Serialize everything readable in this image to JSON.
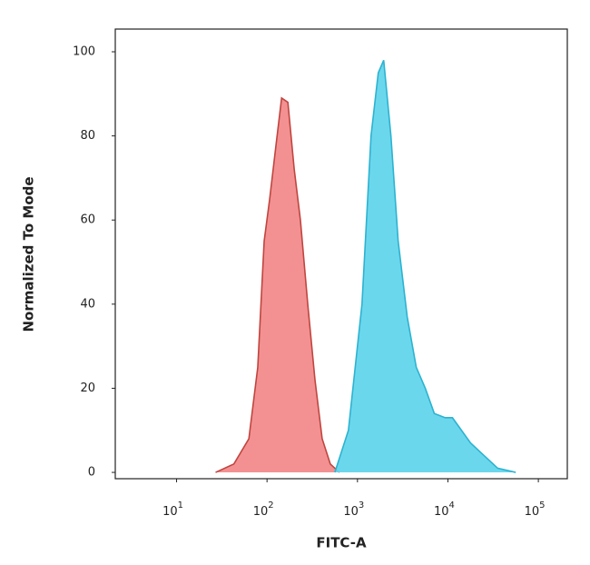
{
  "chart_data": {
    "type": "area",
    "xlabel": "FITC-A",
    "ylabel": "Normalized To Mode",
    "xscale": "log",
    "xlim": [
      2.1,
      209000
    ],
    "ylim": [
      -1.5,
      105.4
    ],
    "xticks": [
      {
        "value": 10,
        "label": "10",
        "exponent": "1"
      },
      {
        "value": 100,
        "label": "10",
        "exponent": "2"
      },
      {
        "value": 1000,
        "label": "10",
        "exponent": "3"
      },
      {
        "value": 10000,
        "label": "10",
        "exponent": "4"
      },
      {
        "value": 100000,
        "label": "10",
        "exponent": "5"
      }
    ],
    "yticks": [
      0,
      20,
      40,
      60,
      80,
      100
    ],
    "series": [
      {
        "color": "#f28b8c",
        "edge": "#c0453f",
        "x": [
          27,
          43,
          63,
          79,
          93,
          107,
          126,
          145,
          170,
          200,
          234,
          282,
          339,
          407,
          501,
          631
        ],
        "values": [
          0,
          2,
          8,
          25,
          55,
          65,
          78,
          89,
          88,
          72,
          60,
          40,
          22,
          8,
          2,
          0
        ]
      },
      {
        "color": "#63d5ec",
        "edge": "#2cb3d0",
        "x": [
          562,
          794,
          1122,
          1413,
          1698,
          1950,
          2344,
          2818,
          3548,
          4467,
          5623,
          7079,
          9333,
          11220,
          14130,
          17780,
          25120,
          35480,
          56230
        ],
        "values": [
          0,
          10,
          40,
          80,
          95,
          98,
          80,
          55,
          37,
          25,
          20,
          14,
          13,
          13,
          10,
          7,
          4,
          1,
          0
        ]
      }
    ]
  }
}
